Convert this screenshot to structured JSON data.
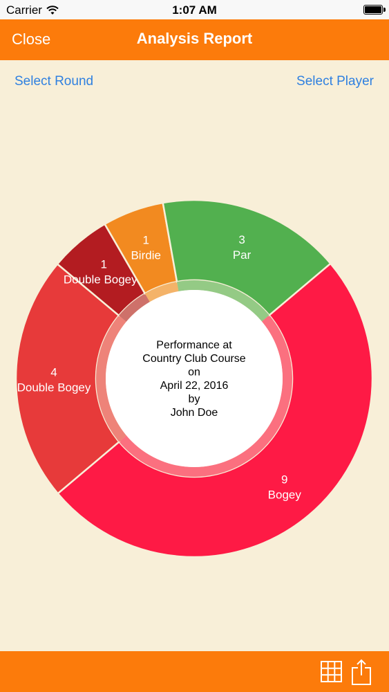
{
  "status_bar": {
    "carrier": "Carrier",
    "time": "1:07 AM",
    "battery_level": 1.0,
    "wifi_icon": "wifi-icon"
  },
  "nav": {
    "close_label": "Close",
    "title": "Analysis Report"
  },
  "links": {
    "select_round": "Select Round",
    "select_player": "Select Player"
  },
  "chart_data": {
    "type": "pie",
    "style": "donut",
    "center_lines": [
      "Performance at",
      "Country Club Course",
      "on",
      "April 22, 2016",
      "by",
      "John Doe"
    ],
    "slices": [
      {
        "label": "Bogey",
        "value": 9,
        "color": "#fe1a45"
      },
      {
        "label": "Double Bogey",
        "value": 4,
        "color": "#e73a3a"
      },
      {
        "label": "Double Bogey+",
        "value": 1,
        "color": "#b31c21"
      },
      {
        "label": "Birdie",
        "value": 1,
        "color": "#f28a20"
      },
      {
        "label": "Par",
        "value": 3,
        "color": "#52b04f"
      }
    ]
  },
  "toolbar": {
    "grid_icon": "grid-icon",
    "share_icon": "share-icon"
  },
  "colors": {
    "accent": "#fc7b0b",
    "background": "#f8efd8",
    "link": "#2f80e0"
  }
}
